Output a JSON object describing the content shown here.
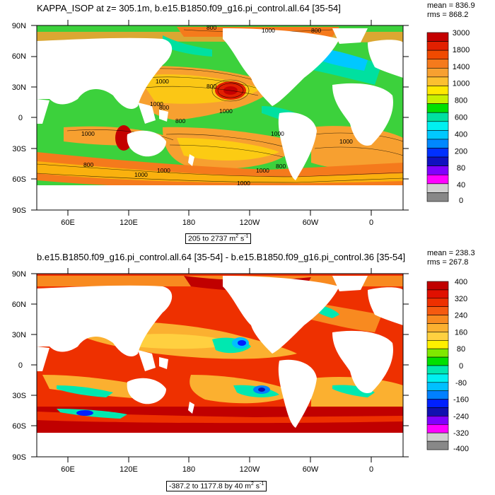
{
  "panels": [
    {
      "title": "KAPPA_ISOP at z= 305.1m, b.e15.B1850.f09_g16.pi_control.all.64 [35-54]",
      "stats": {
        "mean": "mean = 836.9",
        "rms": "rms = 868.2"
      },
      "range_label": "205 to 2737 m",
      "range_units_sup": "2",
      "range_units_tail": " s",
      "range_units_sup2": "-1",
      "lat_labels": [
        "90N",
        "60N",
        "30N",
        "0",
        "30S",
        "60S",
        "90S"
      ],
      "lon_labels": [
        "60E",
        "120E",
        "180",
        "120W",
        "60W",
        "0"
      ],
      "colorbar_labels": [
        "3000",
        "1800",
        "1400",
        "1000",
        "800",
        "600",
        "400",
        "200",
        "80",
        "40",
        "0"
      ],
      "colorbar_colors": [
        "#c40000",
        "#e22000",
        "#f04a00",
        "#f57a1c",
        "#f7a030",
        "#fcc030",
        "#ffe800",
        "#c8f000",
        "#00e000",
        "#00e0a0",
        "#00f0f0",
        "#00c8ff",
        "#0088ff",
        "#0030ff",
        "#1010c0",
        "#8000ff",
        "#ff00ff",
        "#d0d0d0",
        "#888888"
      ],
      "contour_labels": [
        "800",
        "1000",
        "800",
        "1000",
        "800",
        "1000",
        "1000",
        "1000",
        "800",
        "1000",
        "1000",
        "800",
        "1000",
        "800",
        "1000",
        "1000",
        "1000",
        "800"
      ]
    },
    {
      "title": "b.e15.B1850.f09_g16.pi_control.all.64 [35-54] - b.e15.B1850.f09_g16.pi_control.36 [35-54]",
      "stats": {
        "mean": "mean = 238.3",
        "rms": "rms = 267.8"
      },
      "range_label": "-387.2 to 1177.8 by 40 m",
      "range_units_sup": "2",
      "range_units_tail": " s",
      "range_units_sup2": "-1",
      "lat_labels": [
        "90N",
        "60N",
        "30N",
        "0",
        "30S",
        "60S",
        "90S"
      ],
      "lon_labels": [
        "60E",
        "120E",
        "180",
        "120W",
        "60W",
        "0"
      ],
      "colorbar_labels": [
        "400",
        "320",
        "240",
        "160",
        "80",
        "0",
        "-80",
        "-160",
        "-240",
        "-320",
        "-400"
      ],
      "colorbar_colors": [
        "#c00000",
        "#e01000",
        "#ee3000",
        "#f55a10",
        "#f88a20",
        "#fbb030",
        "#ffd040",
        "#fff000",
        "#80e800",
        "#00e000",
        "#00e8b0",
        "#00f0f0",
        "#00c0ff",
        "#0080ff",
        "#0020ff",
        "#1010b0",
        "#8000ff",
        "#ff00ff",
        "#d0d0d0",
        "#888888"
      ]
    }
  ]
}
